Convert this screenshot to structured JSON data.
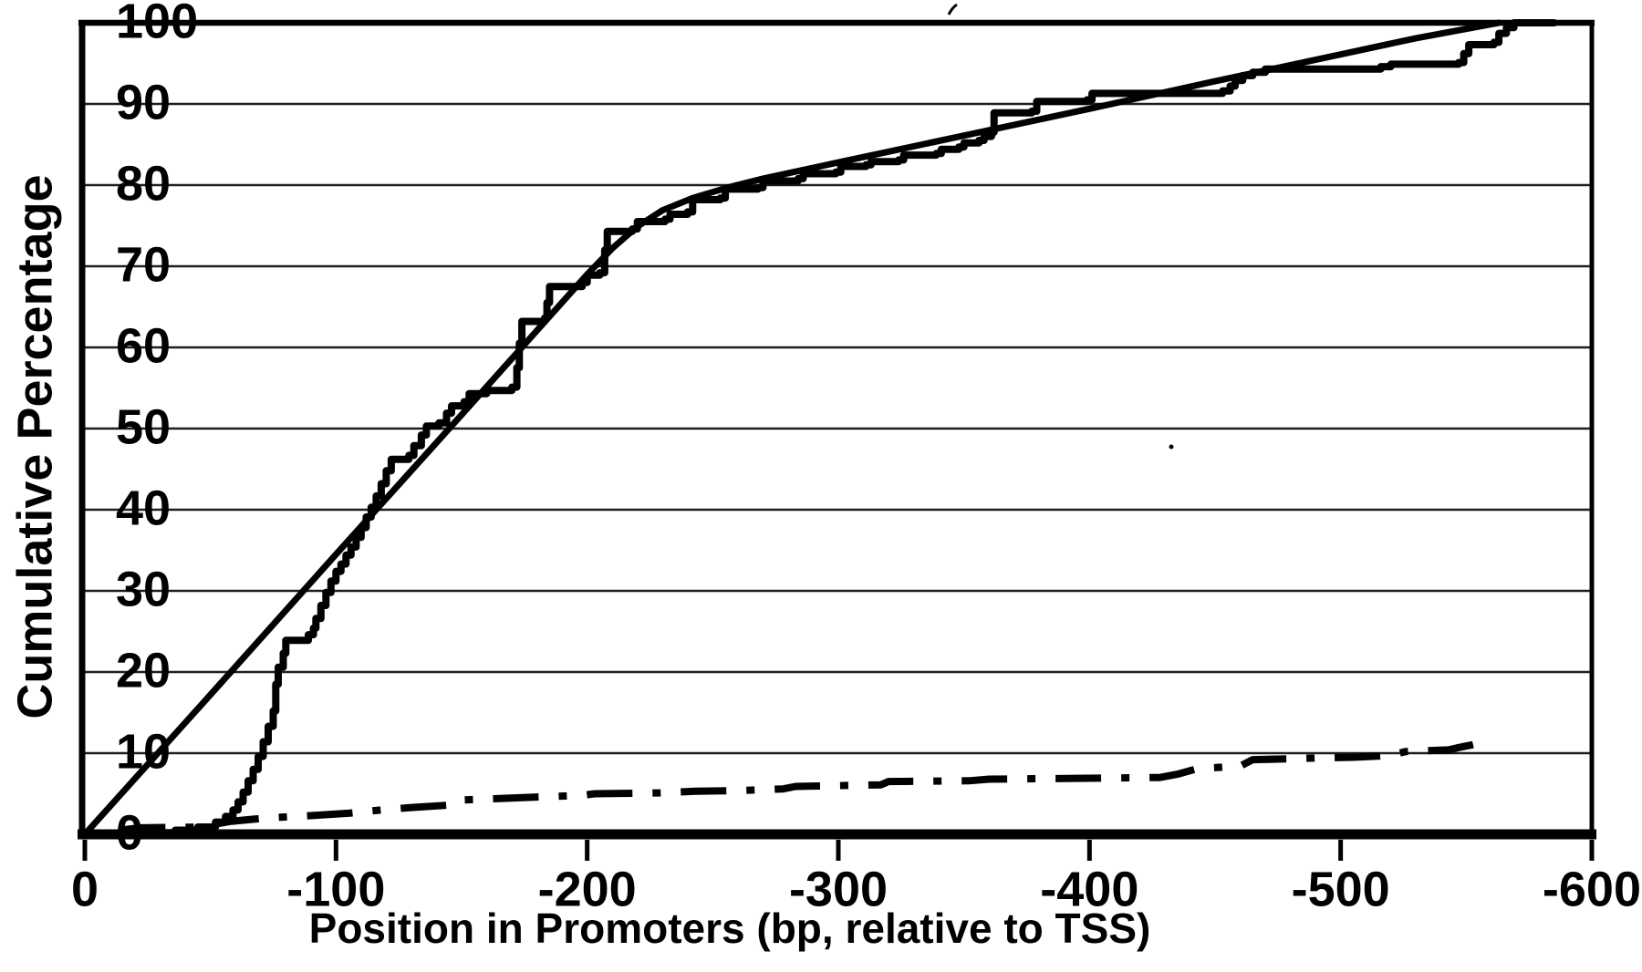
{
  "figure": {
    "kind": "scanned black-and-white line chart",
    "background_color": "#ffffff",
    "ink_color": "#000000"
  },
  "chart_data": {
    "type": "line",
    "title": "",
    "xlabel": "Position in Promoters (bp, relative to TSS)",
    "ylabel": "Cumulative Percentage",
    "xlim": [
      0,
      -600
    ],
    "ylim": [
      0,
      100
    ],
    "x_ticks": [
      0,
      -100,
      -200,
      -300,
      -400,
      -500,
      -600
    ],
    "x_tick_labels": [
      "0",
      "-100",
      "-200",
      "-300",
      "-400",
      "-500",
      "-600"
    ],
    "y_ticks": [
      0,
      10,
      20,
      30,
      40,
      50,
      60,
      70,
      80,
      90,
      100
    ],
    "y_tick_labels": [
      "0",
      "10",
      "20",
      "30",
      "40",
      "50",
      "60",
      "70",
      "80",
      "90",
      "100"
    ],
    "grid": "horizontal gridlines every 10%",
    "legend": "none",
    "series": [
      {
        "name": "observed-cumulative-step-curve",
        "style": "solid",
        "step": true,
        "color": "#000000",
        "points": [
          [
            0,
            0
          ],
          [
            -20,
            0.2
          ],
          [
            -36,
            0.5
          ],
          [
            -45,
            0.9
          ],
          [
            -52,
            1.5
          ],
          [
            -56,
            2.2
          ],
          [
            -59,
            3.0
          ],
          [
            -61,
            4.0
          ],
          [
            -63,
            5.2
          ],
          [
            -65,
            6.6
          ],
          [
            -67,
            8.0
          ],
          [
            -69,
            9.6
          ],
          [
            -71,
            11.4
          ],
          [
            -73,
            13.3
          ],
          [
            -75,
            15.2
          ],
          [
            -76,
            18.5
          ],
          [
            -77,
            20.6
          ],
          [
            -79,
            22.3
          ],
          [
            -80,
            23.9
          ],
          [
            -89,
            24.6
          ],
          [
            -91,
            25.4
          ],
          [
            -92,
            26.6
          ],
          [
            -94,
            28.2
          ],
          [
            -96,
            29.8
          ],
          [
            -98,
            31.2
          ],
          [
            -100,
            32.4
          ],
          [
            -102,
            33.3
          ],
          [
            -104,
            34.4
          ],
          [
            -106,
            35.4
          ],
          [
            -108,
            36.6
          ],
          [
            -110,
            37.8
          ],
          [
            -112,
            39.1
          ],
          [
            -114,
            40.3
          ],
          [
            -116,
            41.7
          ],
          [
            -118,
            43.2
          ],
          [
            -120,
            44.8
          ],
          [
            -122,
            46.2
          ],
          [
            -129,
            46.7
          ],
          [
            -131,
            47.9
          ],
          [
            -134,
            49.2
          ],
          [
            -136,
            50.3
          ],
          [
            -141,
            50.7
          ],
          [
            -144,
            51.9
          ],
          [
            -146,
            52.8
          ],
          [
            -151,
            53.3
          ],
          [
            -153,
            54.3
          ],
          [
            -160,
            54.7
          ],
          [
            -170,
            55.1
          ],
          [
            -172,
            57.5
          ],
          [
            -173,
            60.5
          ],
          [
            -174,
            63.2
          ],
          [
            -183,
            63.6
          ],
          [
            -184,
            65.5
          ],
          [
            -185,
            67.5
          ],
          [
            -198,
            68.0
          ],
          [
            -200,
            68.9
          ],
          [
            -205,
            69.2
          ],
          [
            -207,
            72.0
          ],
          [
            -208,
            74.3
          ],
          [
            -218,
            74.6
          ],
          [
            -220,
            75.5
          ],
          [
            -231,
            75.8
          ],
          [
            -233,
            76.4
          ],
          [
            -240,
            76.7
          ],
          [
            -242,
            78.2
          ],
          [
            -253,
            78.4
          ],
          [
            -255,
            79.5
          ],
          [
            -268,
            79.7
          ],
          [
            -270,
            80.5
          ],
          [
            -284,
            80.8
          ],
          [
            -286,
            81.4
          ],
          [
            -299,
            81.6
          ],
          [
            -301,
            82.3
          ],
          [
            -311,
            82.5
          ],
          [
            -313,
            82.9
          ],
          [
            -324,
            83.1
          ],
          [
            -326,
            83.7
          ],
          [
            -339,
            83.9
          ],
          [
            -341,
            84.4
          ],
          [
            -348,
            84.7
          ],
          [
            -350,
            85.2
          ],
          [
            -356,
            85.5
          ],
          [
            -358,
            86.0
          ],
          [
            -361,
            86.5
          ],
          [
            -362,
            88.9
          ],
          [
            -377,
            89.1
          ],
          [
            -379,
            90.3
          ],
          [
            -399,
            90.5
          ],
          [
            -401,
            91.3
          ],
          [
            -453,
            91.6
          ],
          [
            -456,
            92.2
          ],
          [
            -458,
            92.9
          ],
          [
            -461,
            93.5
          ],
          [
            -465,
            93.9
          ],
          [
            -470,
            94.3
          ],
          [
            -516,
            94.6
          ],
          [
            -520,
            94.9
          ],
          [
            -547,
            95.1
          ],
          [
            -549,
            96.2
          ],
          [
            -551,
            97.3
          ],
          [
            -561,
            97.6
          ],
          [
            -563,
            98.7
          ],
          [
            -566,
            99.4
          ],
          [
            -569,
            100
          ],
          [
            -585,
            100
          ]
        ]
      },
      {
        "name": "reference-expected-line",
        "style": "solid",
        "step": false,
        "color": "#000000",
        "points": [
          [
            0,
            0
          ],
          [
            -50,
            17.2
          ],
          [
            -100,
            34.5
          ],
          [
            -150,
            51.7
          ],
          [
            -200,
            69.0
          ],
          [
            -210,
            72.2
          ],
          [
            -220,
            74.9
          ],
          [
            -230,
            76.9
          ],
          [
            -242,
            78.4
          ],
          [
            -256,
            79.7
          ],
          [
            -270,
            80.8
          ],
          [
            -300,
            82.8
          ],
          [
            -350,
            86.1
          ],
          [
            -400,
            89.4
          ],
          [
            -450,
            92.8
          ],
          [
            -500,
            96.1
          ],
          [
            -530,
            98.1
          ],
          [
            -563,
            100
          ]
        ]
      },
      {
        "name": "control-dash-dot-curve",
        "style": "dashdot",
        "step": false,
        "color": "#000000",
        "points": [
          [
            -14,
            0.5
          ],
          [
            -22,
            0.8
          ],
          [
            -45,
            0.9
          ],
          [
            -58,
            1.6
          ],
          [
            -72,
            2.0
          ],
          [
            -90,
            2.3
          ],
          [
            -105,
            2.6
          ],
          [
            -118,
            3.0
          ],
          [
            -130,
            3.3
          ],
          [
            -145,
            3.6
          ],
          [
            -148,
            4.2
          ],
          [
            -165,
            4.4
          ],
          [
            -180,
            4.6
          ],
          [
            -198,
            4.8
          ],
          [
            -203,
            5.0
          ],
          [
            -228,
            5.1
          ],
          [
            -243,
            5.3
          ],
          [
            -262,
            5.4
          ],
          [
            -278,
            5.6
          ],
          [
            -283,
            5.9
          ],
          [
            -300,
            6.0
          ],
          [
            -317,
            6.1
          ],
          [
            -320,
            6.5
          ],
          [
            -352,
            6.6
          ],
          [
            -360,
            6.8
          ],
          [
            -395,
            6.9
          ],
          [
            -428,
            7.0
          ],
          [
            -435,
            7.4
          ],
          [
            -443,
            8.1
          ],
          [
            -460,
            8.4
          ],
          [
            -465,
            9.2
          ],
          [
            -480,
            9.3
          ],
          [
            -490,
            9.4
          ],
          [
            -505,
            9.5
          ],
          [
            -519,
            9.7
          ],
          [
            -526,
            10.2
          ],
          [
            -543,
            10.4
          ],
          [
            -547,
            10.7
          ],
          [
            -552,
            11.0
          ],
          [
            -556,
            11.3
          ]
        ]
      }
    ]
  }
}
